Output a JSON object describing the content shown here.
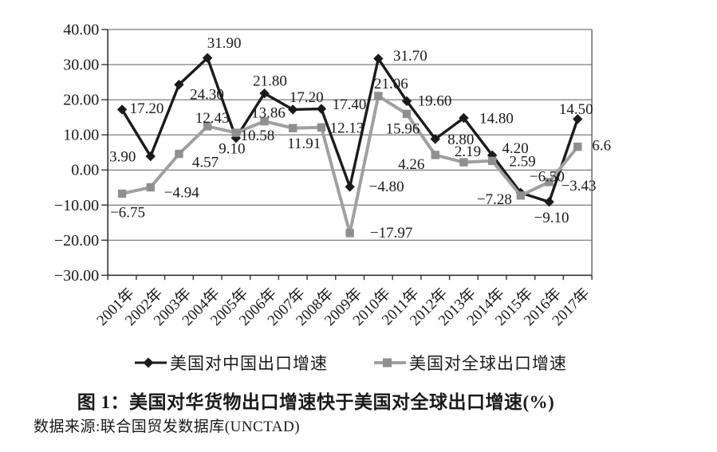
{
  "chart_data": {
    "type": "line",
    "title": "",
    "categories": [
      "2001年",
      "2002年",
      "2003年",
      "2004年",
      "2005年",
      "2006年",
      "2007年",
      "2008年",
      "2009年",
      "2010年",
      "2011年",
      "2012年",
      "2013年",
      "2014年",
      "2015年",
      "2016年",
      "2017年"
    ],
    "y_axis": {
      "min": -30,
      "max": 40,
      "ticks": [
        40,
        30,
        20,
        10,
        0,
        -10,
        -20,
        -30
      ],
      "tick_labels": [
        "40.00",
        "30.00",
        "20.00",
        "10.00",
        "0.00",
        "−10.00",
        "−20.00",
        "−30.00"
      ]
    },
    "grid": true,
    "legend_position": "bottom",
    "series": [
      {
        "name": "美国对中国出口增速",
        "color": "#1b1b1b",
        "marker": "diamond",
        "marker_color": "#1b1b1b",
        "values": [
          17.2,
          3.9,
          24.3,
          31.9,
          9.1,
          21.8,
          17.2,
          17.4,
          -4.8,
          31.7,
          19.6,
          8.8,
          14.8,
          4.2,
          -6.5,
          -9.1,
          14.5
        ],
        "labels": [
          "17.20",
          "3.90",
          "24.30",
          "31.90",
          "9.10",
          "21.80",
          "17.20",
          "17.40",
          "−4.80",
          "31.70",
          "19.60",
          "8.80",
          "14.80",
          "4.20",
          "−6.50",
          "−9.10",
          "14.50"
        ],
        "label_offsets": [
          [
            31,
            -2
          ],
          [
            -35,
            0
          ],
          [
            35,
            12
          ],
          [
            21,
            -19
          ],
          [
            -5,
            13
          ],
          [
            7,
            -16
          ],
          [
            17,
            -16
          ],
          [
            35,
            -6
          ],
          [
            46,
            -1
          ],
          [
            40,
            -4
          ],
          [
            35,
            -1
          ],
          [
            32,
            0
          ],
          [
            41,
            0
          ],
          [
            29,
            -9
          ],
          [
            33,
            -21
          ],
          [
            3,
            19
          ],
          [
            -2,
            -13
          ]
        ]
      },
      {
        "name": "美国对全球出口增速",
        "color": "#a0a0a0",
        "marker": "square",
        "marker_color": "#8f8f8f",
        "values": [
          -6.75,
          -4.94,
          4.57,
          12.43,
          10.58,
          13.86,
          11.91,
          12.13,
          -17.97,
          21.06,
          15.96,
          4.26,
          2.19,
          2.59,
          -7.28,
          -3.43,
          6.6
        ],
        "labels": [
          "−6.75",
          "−4.94",
          "4.57",
          "12.43",
          "10.58",
          "13.86",
          "11.91",
          "12.13",
          "−17.97",
          "21.06",
          "15.96",
          "4.26",
          "2.19",
          "2.59",
          "−7.28",
          "−3.43",
          "6.6"
        ],
        "label_offsets": [
          [
            7,
            23
          ],
          [
            39,
            6
          ],
          [
            33,
            10
          ],
          [
            6,
            -11
          ],
          [
            27,
            3
          ],
          [
            5,
            -11
          ],
          [
            14,
            19
          ],
          [
            32,
            0
          ],
          [
            52,
            -1
          ],
          [
            16,
            -16
          ],
          [
            -5,
            18
          ],
          [
            -30,
            11
          ],
          [
            5,
            -14
          ],
          [
            38,
            0
          ],
          [
            -33,
            4
          ],
          [
            37,
            4
          ],
          [
            30,
            -2
          ]
        ]
      }
    ]
  },
  "caption": {
    "text": "图 1：美国对华货物出口增速快于美国对全球出口增速(%)"
  },
  "source": {
    "text": "数据来源:联合国贸发数据库(UNCTAD)"
  }
}
